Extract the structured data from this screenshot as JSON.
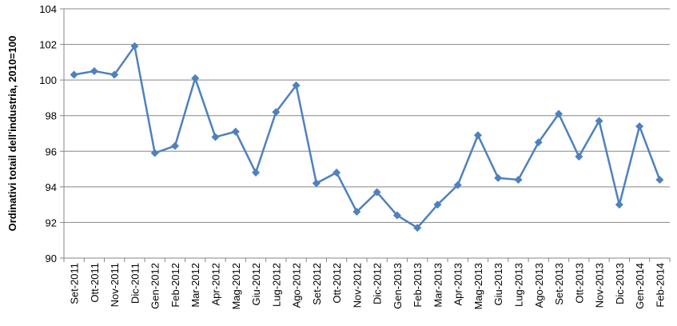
{
  "chart_data": {
    "type": "line",
    "title": "",
    "xlabel": "",
    "ylabel": "Ordinativi totail dell'industria, 2010=100",
    "ylim": [
      90,
      104
    ],
    "y_ticks": [
      90,
      92,
      94,
      96,
      98,
      100,
      102,
      104
    ],
    "grid": "horizontal",
    "legend": "none",
    "categories": [
      "Set-2011",
      "Ott-2011",
      "Nov-2011",
      "Dic-2011",
      "Gen-2012",
      "Feb-2012",
      "Mar-2012",
      "Apr-2012",
      "Mag-2012",
      "Giu-2012",
      "Lug-2012",
      "Ago-2012",
      "Set-2012",
      "Ott-2012",
      "Nov-2012",
      "Dic-2012",
      "Gen-2013",
      "Feb-2013",
      "Mar-2013",
      "Apr-2013",
      "Mag-2013",
      "Giu-2013",
      "Lug-2013",
      "Ago-2013",
      "Set-2013",
      "Ott-2013",
      "Nov-2013",
      "Dic-2013",
      "Gen-2014",
      "Feb-2014"
    ],
    "series": [
      {
        "values": [
          100.3,
          100.5,
          100.3,
          101.9,
          95.9,
          96.3,
          100.1,
          96.8,
          97.1,
          94.8,
          98.2,
          99.7,
          94.2,
          94.8,
          92.6,
          93.7,
          92.4,
          91.7,
          93.0,
          94.1,
          96.9,
          94.5,
          94.4,
          96.5,
          98.1,
          95.7,
          97.7,
          93.0,
          97.4,
          94.4
        ],
        "color": "#4f81bd",
        "marker": "diamond"
      }
    ],
    "colors": {
      "line": "#4f81bd",
      "grid": "#878787",
      "axis": "#878787"
    }
  }
}
